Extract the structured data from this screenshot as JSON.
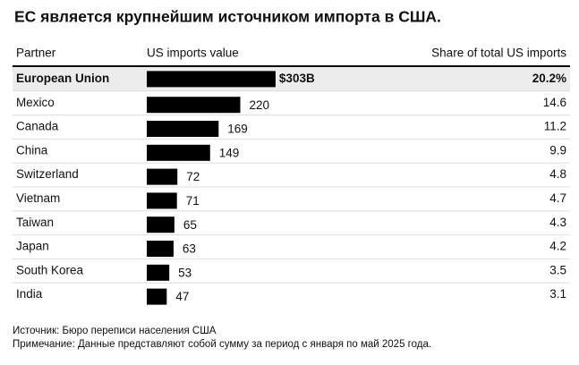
{
  "chart_data": {
    "type": "table-bar",
    "title": "ЕС является крупнейшим источником импорта в США.",
    "columns": [
      "Partner",
      "US imports value",
      "Share of total US imports"
    ],
    "categories": [
      "European Union",
      "Mexico",
      "Canada",
      "China",
      "Switzerland",
      "Vietnam",
      "Taiwan",
      "Japan",
      "South Korea",
      "India"
    ],
    "values": [
      303,
      220,
      169,
      149,
      72,
      71,
      65,
      63,
      53,
      47
    ],
    "value_labels": [
      "$303B",
      "220",
      "169",
      "149",
      "72",
      "71",
      "65",
      "63",
      "53",
      "47"
    ],
    "shares": [
      20.2,
      14.6,
      11.2,
      9.9,
      4.8,
      4.7,
      4.3,
      4.2,
      3.5,
      3.1
    ],
    "share_labels": [
      "20.2%",
      "14.6",
      "11.2",
      "9.9",
      "4.8",
      "4.7",
      "4.3",
      "4.2",
      "3.5",
      "3.1"
    ],
    "color": "#000000",
    "highlight": 0,
    "source": "Источник: Бюро переписи населения США",
    "note": "Примечание: Данные представляют собой сумму за период с января по май 2025 года."
  }
}
